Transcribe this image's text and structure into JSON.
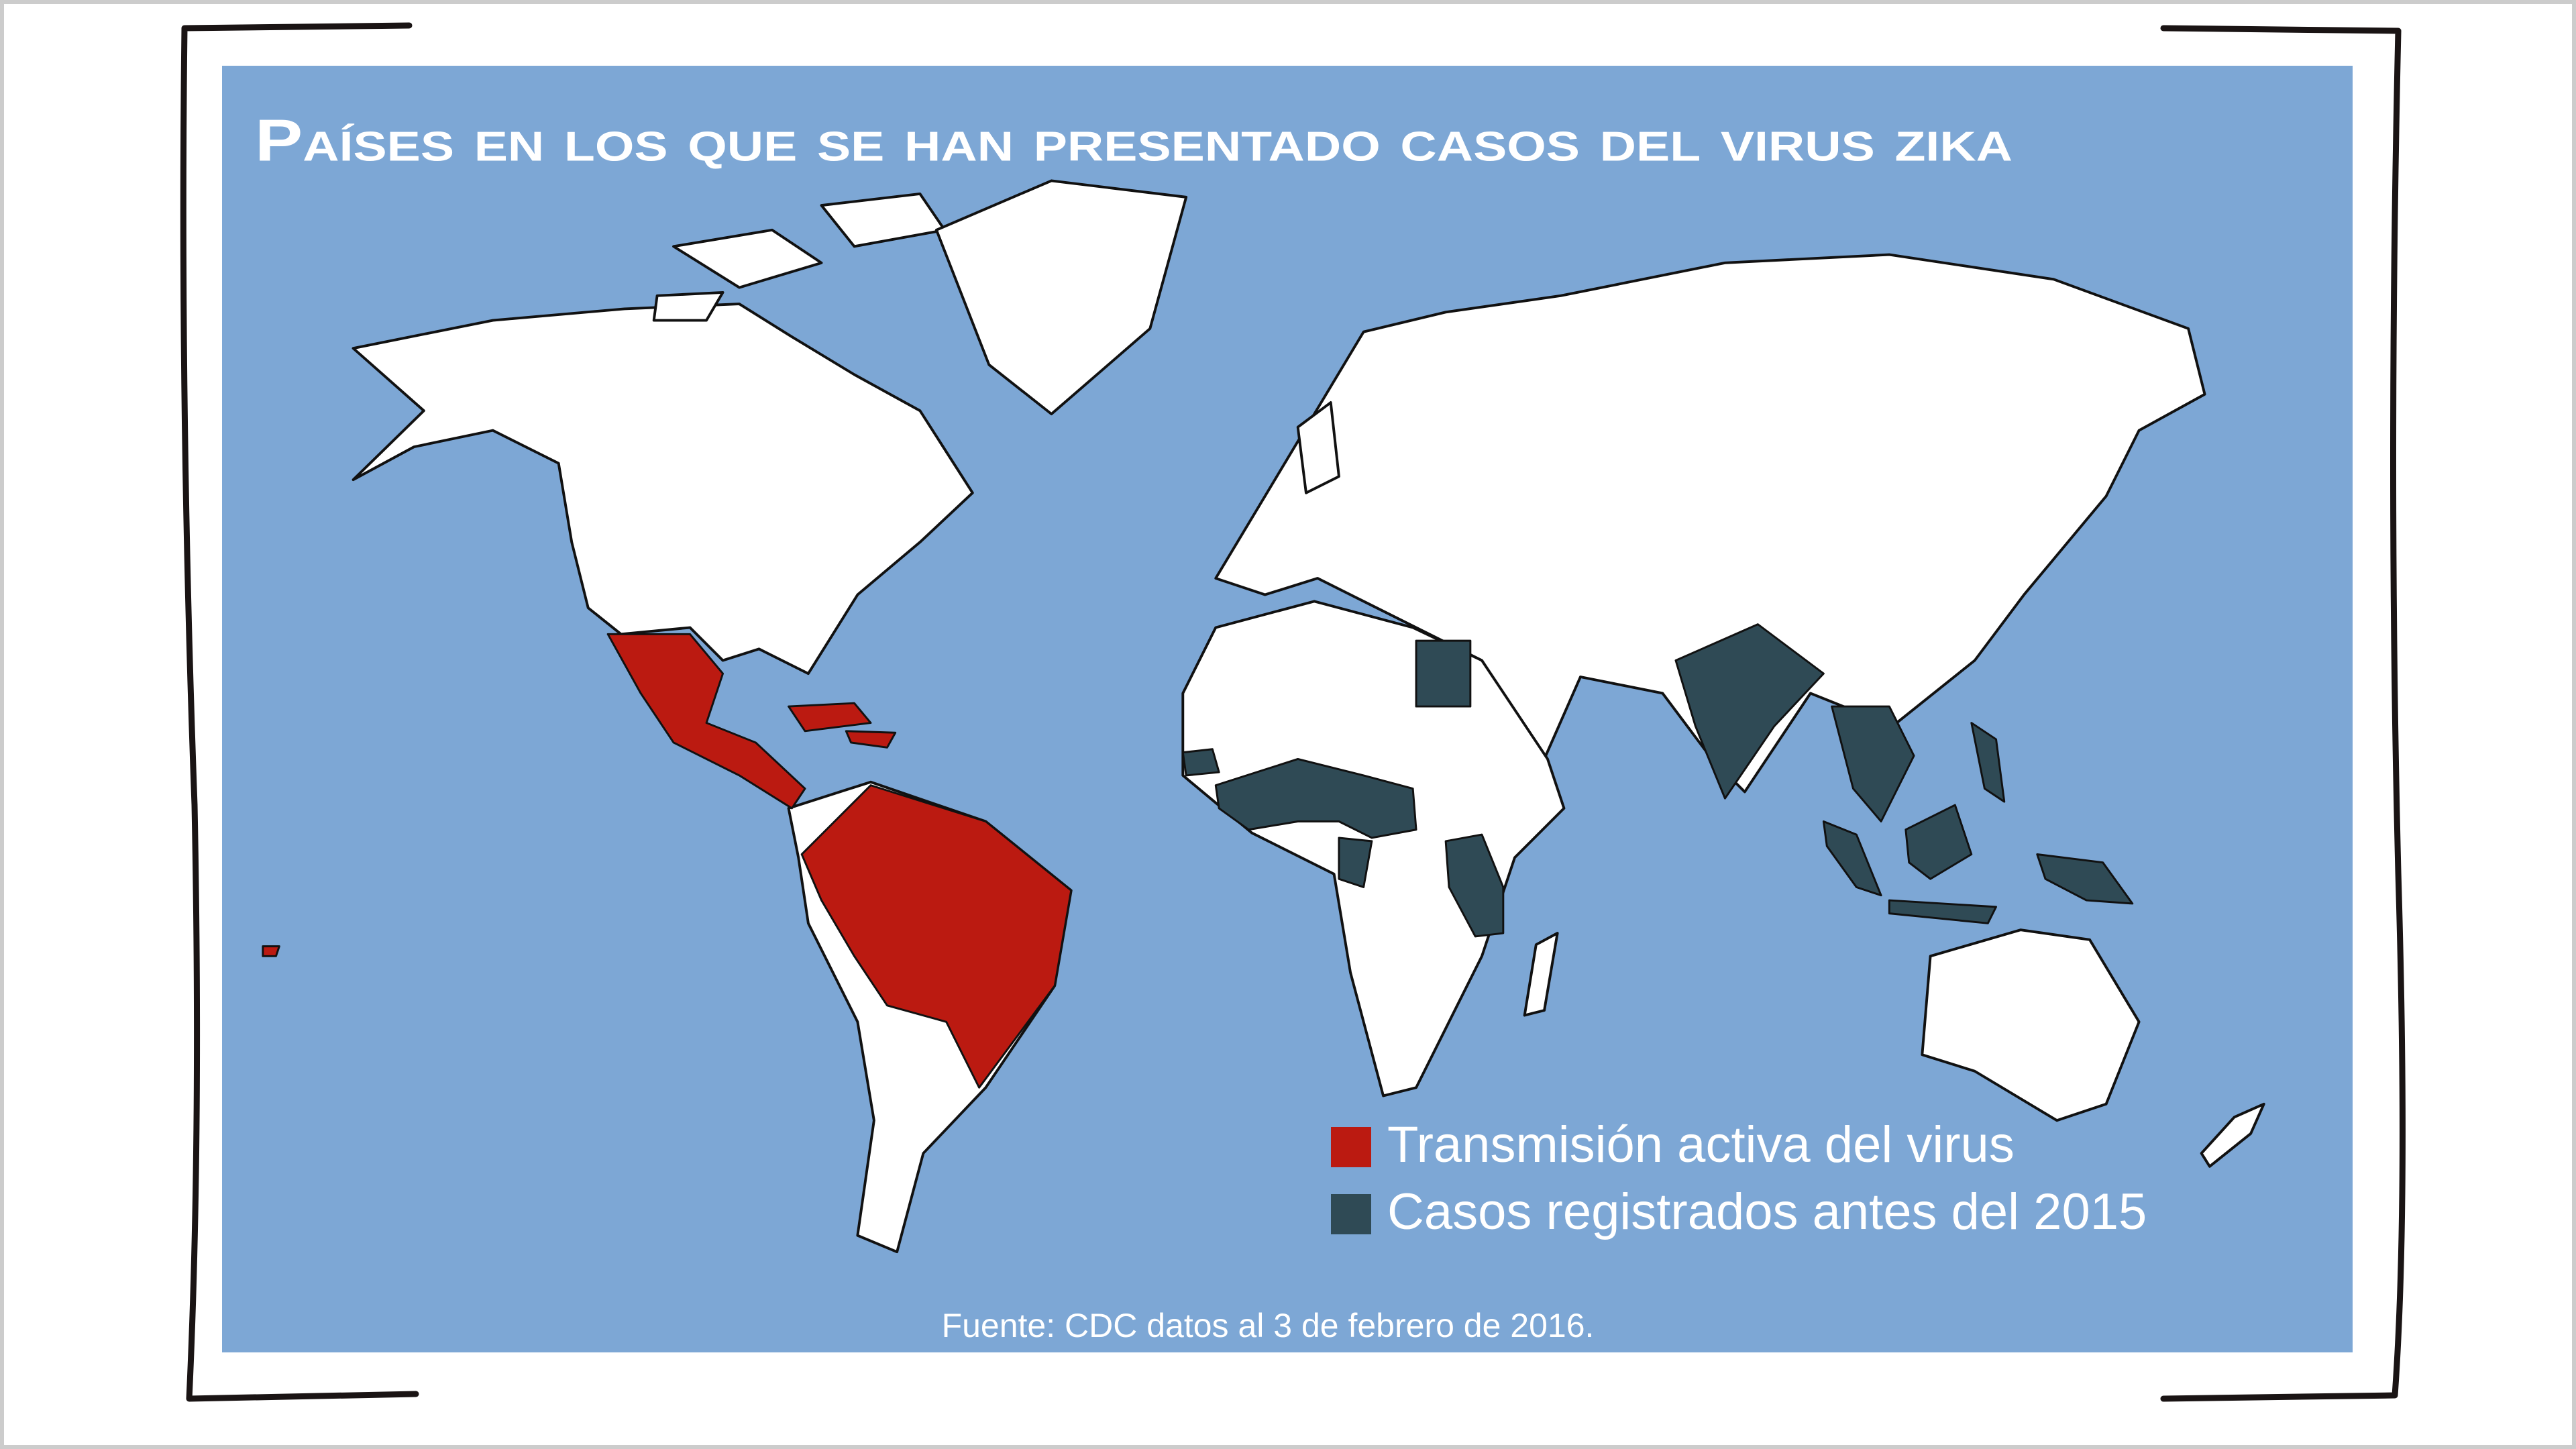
{
  "title": "Países en los que se han presentado casos del virus zika",
  "legend": [
    {
      "label": "Transmisión activa del virus",
      "color": "#bb1a11"
    },
    {
      "label": "Casos registrados antes del 2015",
      "color": "#2f4a55"
    }
  ],
  "source": "Fuente: CDC datos al 3 de febrero de 2016."
}
